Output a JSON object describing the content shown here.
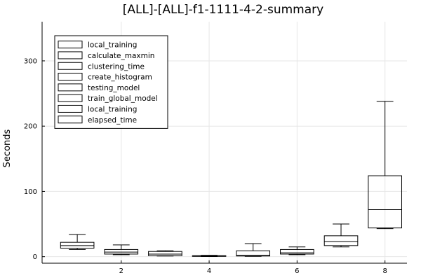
{
  "chart_data": {
    "type": "box",
    "title": "[ALL]-[ALL]-f1-1111-4-2-summary",
    "xlabel": "",
    "ylabel": "Seconds",
    "xlim": [
      0.2,
      8.5
    ],
    "ylim": [
      -10,
      360
    ],
    "xticks": [
      2,
      4,
      6,
      8
    ],
    "yticks": [
      0,
      100,
      200,
      300
    ],
    "grid": true,
    "legend_position": "top-left",
    "legend": [
      "local_training",
      "calculate_maxmin",
      "clustering_time",
      "create_histogram",
      "testing_model",
      "train_global_model",
      "local_training",
      "elapsed_time"
    ],
    "boxes": [
      {
        "x": 1,
        "min": 11,
        "q1": 13,
        "median": 17,
        "q3": 22,
        "max": 34
      },
      {
        "x": 2,
        "min": 3,
        "q1": 4,
        "median": 7,
        "q3": 11,
        "max": 18
      },
      {
        "x": 3,
        "min": 1,
        "q1": 1.5,
        "median": 4,
        "q3": 8,
        "max": 9
      },
      {
        "x": 4,
        "min": 0.2,
        "q1": 0.5,
        "median": 1,
        "q3": 1.5,
        "max": 2
      },
      {
        "x": 5,
        "min": 0.5,
        "q1": 1,
        "median": 2,
        "q3": 9,
        "max": 20
      },
      {
        "x": 6,
        "min": 3,
        "q1": 4,
        "median": 6,
        "q3": 11,
        "max": 15
      },
      {
        "x": 7,
        "min": 15,
        "q1": 17,
        "median": 23,
        "q3": 32,
        "max": 50
      },
      {
        "x": 8,
        "min": 43,
        "q1": 44,
        "median": 72,
        "q3": 124,
        "max": 238
      }
    ]
  }
}
